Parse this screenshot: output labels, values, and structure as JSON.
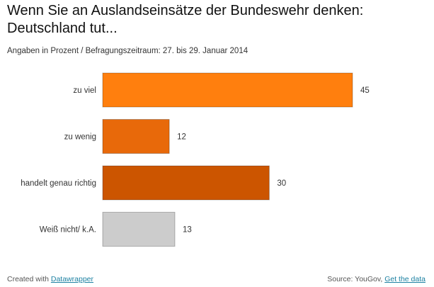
{
  "header": {
    "title": "Wenn Sie an Auslandseinsätze der Bundeswehr denken: Deutschland tut...",
    "subtitle": "Angaben in Prozent / Befragungszeitraum: 27. bis 29. Januar 2014"
  },
  "chart_data": {
    "type": "bar",
    "orientation": "horizontal",
    "categories": [
      "zu viel",
      "zu wenig",
      "handelt genau richtig",
      "Weiß nicht/ k.A."
    ],
    "values": [
      45,
      12,
      30,
      13
    ],
    "colors": [
      "#ff7f0e",
      "#e8690a",
      "#cc5500",
      "#cccccc"
    ],
    "xlim": [
      0,
      45
    ],
    "data_labels": true,
    "grid": false,
    "legend": "none"
  },
  "footer": {
    "created_prefix": "Created with",
    "created_link": "Datawrapper",
    "source_prefix": "Source: YouGov,",
    "source_link": "Get the data"
  }
}
